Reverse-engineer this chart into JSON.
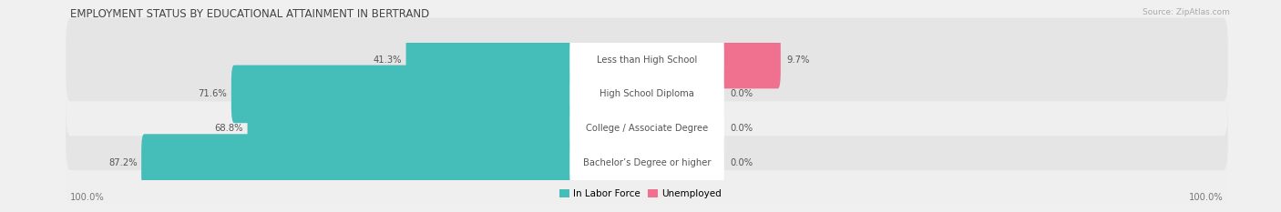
{
  "title": "EMPLOYMENT STATUS BY EDUCATIONAL ATTAINMENT IN BERTRAND",
  "source": "Source: ZipAtlas.com",
  "categories": [
    "Less than High School",
    "High School Diploma",
    "College / Associate Degree",
    "Bachelor’s Degree or higher"
  ],
  "labor_force": [
    41.3,
    71.6,
    68.8,
    87.2
  ],
  "unemployed": [
    9.7,
    0.0,
    0.0,
    0.0
  ],
  "labor_force_color": "#45bdb8",
  "unemployed_color": "#f07090",
  "row_bg_light": "#efefef",
  "row_bg_dark": "#e5e5e5",
  "label_bg_color": "#ffffff",
  "figsize": [
    14.06,
    2.33
  ],
  "dpi": 100,
  "title_fontsize": 8.5,
  "label_fontsize": 7.2,
  "value_fontsize": 7.2,
  "legend_fontsize": 7.5,
  "source_fontsize": 6.5,
  "bg_color": "#f0f0f0"
}
